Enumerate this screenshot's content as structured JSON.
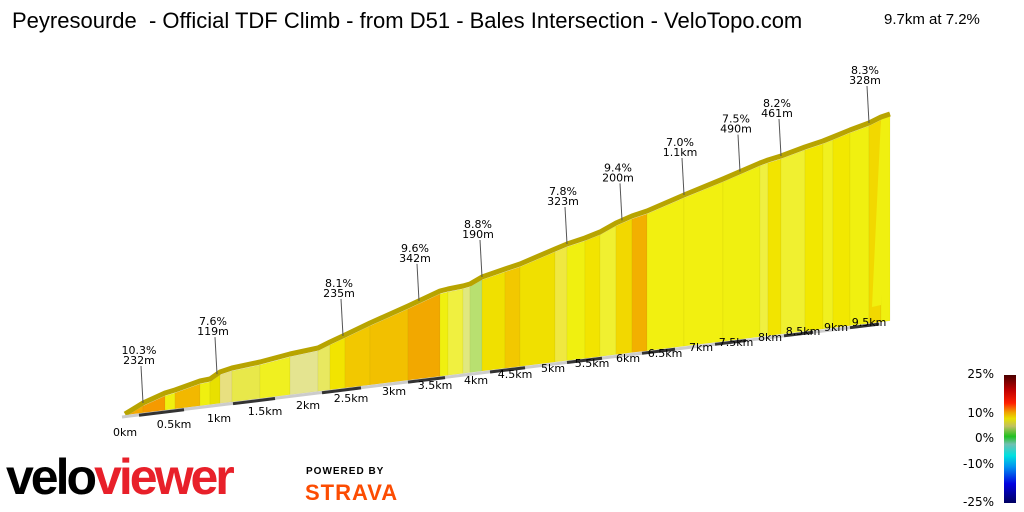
{
  "title": "Peyresourde  - Official TDF Climb - from D51 - Bales Intersection - VeloTopo.com",
  "summary": "9.7km at 7.2%",
  "chart_data": {
    "type": "area",
    "title": "Peyresourde  - Official TDF Climb - from D51 - Bales Intersection - VeloTopo.com",
    "total_distance_km": 9.7,
    "average_gradient_pct": 7.2,
    "x_ticks": [
      "0km",
      "0.5km",
      "1km",
      "1.5km",
      "2km",
      "2.5km",
      "3km",
      "3.5km",
      "4km",
      "4.5km",
      "5km",
      "5.5km",
      "6km",
      "6.5km",
      "7km",
      "7.5km",
      "8km",
      "8.5km",
      "9km",
      "9.5km"
    ],
    "segments": [
      {
        "gradient": "10.3%",
        "length": "232m",
        "at_km": 0.23
      },
      {
        "gradient": "7.6%",
        "length": "119m",
        "at_km": 1.17
      },
      {
        "gradient": "8.1%",
        "length": "235m",
        "at_km": 2.78
      },
      {
        "gradient": "9.6%",
        "length": "342m",
        "at_km": 3.75
      },
      {
        "gradient": "8.8%",
        "length": "190m",
        "at_km": 4.55
      },
      {
        "gradient": "7.8%",
        "length": "323m",
        "at_km": 5.64
      },
      {
        "gradient": "9.4%",
        "length": "200m",
        "at_km": 6.34
      },
      {
        "gradient": "7.0%",
        "length": "1.1km",
        "at_km": 7.13
      },
      {
        "gradient": "7.5%",
        "length": "490m",
        "at_km": 7.84
      },
      {
        "gradient": "8.2%",
        "length": "461m",
        "at_km": 8.37
      },
      {
        "gradient": "8.3%",
        "length": "328m",
        "at_km": 9.49
      }
    ],
    "legend": {
      "labels": [
        "25%",
        "10%",
        "0%",
        "-10%",
        "-25%"
      ]
    }
  },
  "branding": {
    "logo_a": "velo",
    "logo_b": "viewer",
    "powered_by": "POWERED BY",
    "strava": "STRAVA"
  }
}
